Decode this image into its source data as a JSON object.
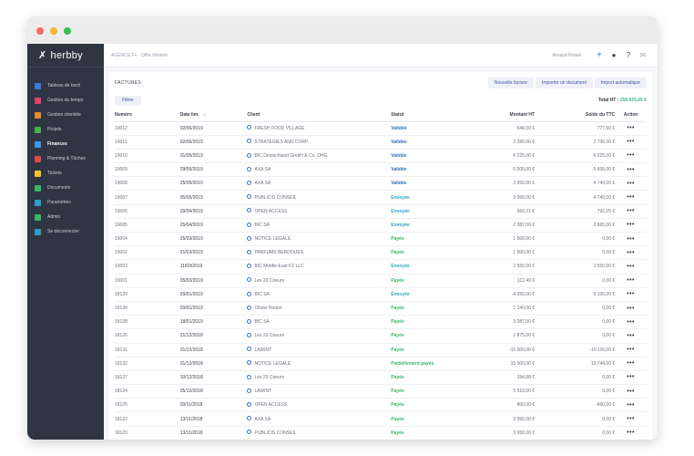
{
  "app": {
    "logo_text": "herbby"
  },
  "sidebar": {
    "items": [
      {
        "label": "Tableau de bord",
        "icon": "dashboard-icon",
        "color": "#3c78d8",
        "active": false
      },
      {
        "label": "Gestion du temps",
        "icon": "stopwatch-icon",
        "color": "#e0446b",
        "active": false
      },
      {
        "label": "Gestion clientèle",
        "icon": "clients-icon",
        "color": "#e88b2e",
        "active": false
      },
      {
        "label": "Projets",
        "icon": "projects-icon",
        "color": "#4caf50",
        "active": false
      },
      {
        "label": "Finances",
        "icon": "finances-icon",
        "color": "#3c9be0",
        "active": true
      },
      {
        "label": "Planning & Tâches",
        "icon": "planning-icon",
        "color": "#e04b4b",
        "active": false
      },
      {
        "label": "Tickets",
        "icon": "tickets-icon",
        "color": "#f2c12e",
        "active": false
      },
      {
        "label": "Documents",
        "icon": "documents-icon",
        "color": "#3ab56a",
        "active": false
      },
      {
        "label": "Paramètres",
        "icon": "settings-icon",
        "color": "#2ea0c8",
        "active": false
      },
      {
        "label": "Admin",
        "icon": "admin-icon",
        "color": "#3ab56a",
        "active": false
      },
      {
        "label": "Se déconnecter",
        "icon": "logout-icon",
        "color": "#2ea0c8",
        "active": false
      }
    ]
  },
  "topbar": {
    "agency": "AGENCE F+ - Offre illimitée",
    "user": "Arnaud Roisel"
  },
  "panel": {
    "title": "FACTURES",
    "buttons": {
      "new": "Nouvelle facture",
      "import_doc": "Importer un document",
      "import_auto": "Import automatique"
    },
    "filter_label": "Filtrer",
    "total_label": "Total HT :",
    "total_value": "258 925,65 €"
  },
  "table": {
    "headers": {
      "num": "Numéro",
      "date": "Date lim.",
      "client": "Client",
      "status": "Statut",
      "ht": "Montant HT",
      "ttc": "Solde du TTC",
      "action": "Action"
    },
    "rows": [
      {
        "num": "19012",
        "date": "02/06/2019",
        "client": "FRESH FOOD VILLAGE",
        "status": "Validée",
        "ht": "648,00 €",
        "ttc": "777,60 €"
      },
      {
        "num": "19011",
        "date": "02/06/2019",
        "client": "STRATEGIES AND CORP.",
        "status": "Validée",
        "ht": "2 280,00 €",
        "ttc": "2 736,00 €"
      },
      {
        "num": "19010",
        "date": "31/05/2019",
        "client": "BIC Deutschland GmbH & Co. OHG",
        "status": "Validée",
        "ht": "6 225,00 €",
        "ttc": "6 225,00 €"
      },
      {
        "num": "19009",
        "date": "29/05/2019",
        "client": "AXA SA",
        "status": "Validée",
        "ht": "5 500,00 €",
        "ttc": "6 600,00 €"
      },
      {
        "num": "19008",
        "date": "25/05/2019",
        "client": "AXA SA",
        "status": "Validée",
        "ht": "3 950,00 €",
        "ttc": "4 740,00 €"
      },
      {
        "num": "19007",
        "date": "05/05/2019",
        "client": "PUBLICIS CONSEIL",
        "status": "Envoyée",
        "ht": "3 950,00 €",
        "ttc": "4 740,00 €"
      },
      {
        "num": "19006",
        "date": "29/04/2019",
        "client": "OPEN ACCESS",
        "status": "Envoyée",
        "ht": "660,21 €",
        "ttc": "792,25 €"
      },
      {
        "num": "19005",
        "date": "25/04/2019",
        "client": "BIC SA",
        "status": "Envoyée",
        "ht": "2 387,50 €",
        "ttc": "2 865,00 €"
      },
      {
        "num": "19004",
        "date": "25/03/2019",
        "client": "NOTICE LEGALE",
        "status": "Payée",
        "ht": "1 500,00 €",
        "ttc": "0,00 €"
      },
      {
        "num": "19002",
        "date": "21/03/2019",
        "client": "PARFUMS BERDOUES",
        "status": "Payée",
        "ht": "1 600,00 €",
        "ttc": "0,00 €"
      },
      {
        "num": "19003",
        "date": "11/03/2019",
        "client": "BIC Middle-East FZ LLC",
        "status": "Envoyée",
        "ht": "2 550,00 €",
        "ttc": "2 550,00 €"
      },
      {
        "num": "19001",
        "date": "05/03/2019",
        "client": "Les 20 Coeurs",
        "status": "Payée",
        "ht": "112,49 €",
        "ttc": "0,00 €"
      },
      {
        "num": "18129",
        "date": "20/01/2019",
        "client": "BIC SA",
        "status": "Envoyée",
        "ht": "4 250,00 €",
        "ttc": "5 100,00 €"
      },
      {
        "num": "18130",
        "date": "20/01/2019",
        "client": "Olivier Roulet",
        "status": "Payée",
        "ht": "1 140,00 €",
        "ttc": "0,00 €"
      },
      {
        "num": "18128",
        "date": "18/01/2019",
        "client": "BIC SA",
        "status": "Payée",
        "ht": "3 087,50 €",
        "ttc": "0,00 €"
      },
      {
        "num": "18126",
        "date": "31/12/2018",
        "client": "Les 20 Coeurs",
        "status": "Payée",
        "ht": "1 875,00 €",
        "ttc": "0,00 €"
      },
      {
        "num": "18131",
        "date": "31/12/2018",
        "client": "LAWINT",
        "status": "Payée",
        "ht": "-15 500,00 €",
        "ttc": "-19 116,00 €"
      },
      {
        "num": "18132",
        "date": "31/12/2018",
        "client": "NOTICE LEGALE",
        "status": "Partiellement payée",
        "ht": "15 500,00 €",
        "ttc": "12 744,00 €"
      },
      {
        "num": "18127",
        "date": "10/12/2018",
        "client": "Les 20 Coeurs",
        "status": "Payée",
        "ht": "194,88 €",
        "ttc": "0,00 €"
      },
      {
        "num": "18124",
        "date": "05/12/2018",
        "client": "LAWINT",
        "status": "Payée",
        "ht": "5 310,00 €",
        "ttc": "0,00 €"
      },
      {
        "num": "18125",
        "date": "20/11/2018",
        "client": "OPEN ACCESS",
        "status": "Payée",
        "ht": "800,00 €",
        "ttc": "-960,00 €"
      },
      {
        "num": "18122",
        "date": "13/11/2018",
        "client": "AXA SA",
        "status": "Payée",
        "ht": "3 950,00 €",
        "ttc": "0,00 €"
      },
      {
        "num": "18123",
        "date": "13/11/2018",
        "client": "PUBLICIS CONSEIL",
        "status": "Payée",
        "ht": "3 950,00 €",
        "ttc": "0,00 €"
      }
    ]
  },
  "status_colors": {
    "Validée": "#2f6fb8",
    "Envoyée": "#2ea3c8",
    "Payée": "#3ab56a",
    "Partiellement payée": "#3ab56a"
  }
}
